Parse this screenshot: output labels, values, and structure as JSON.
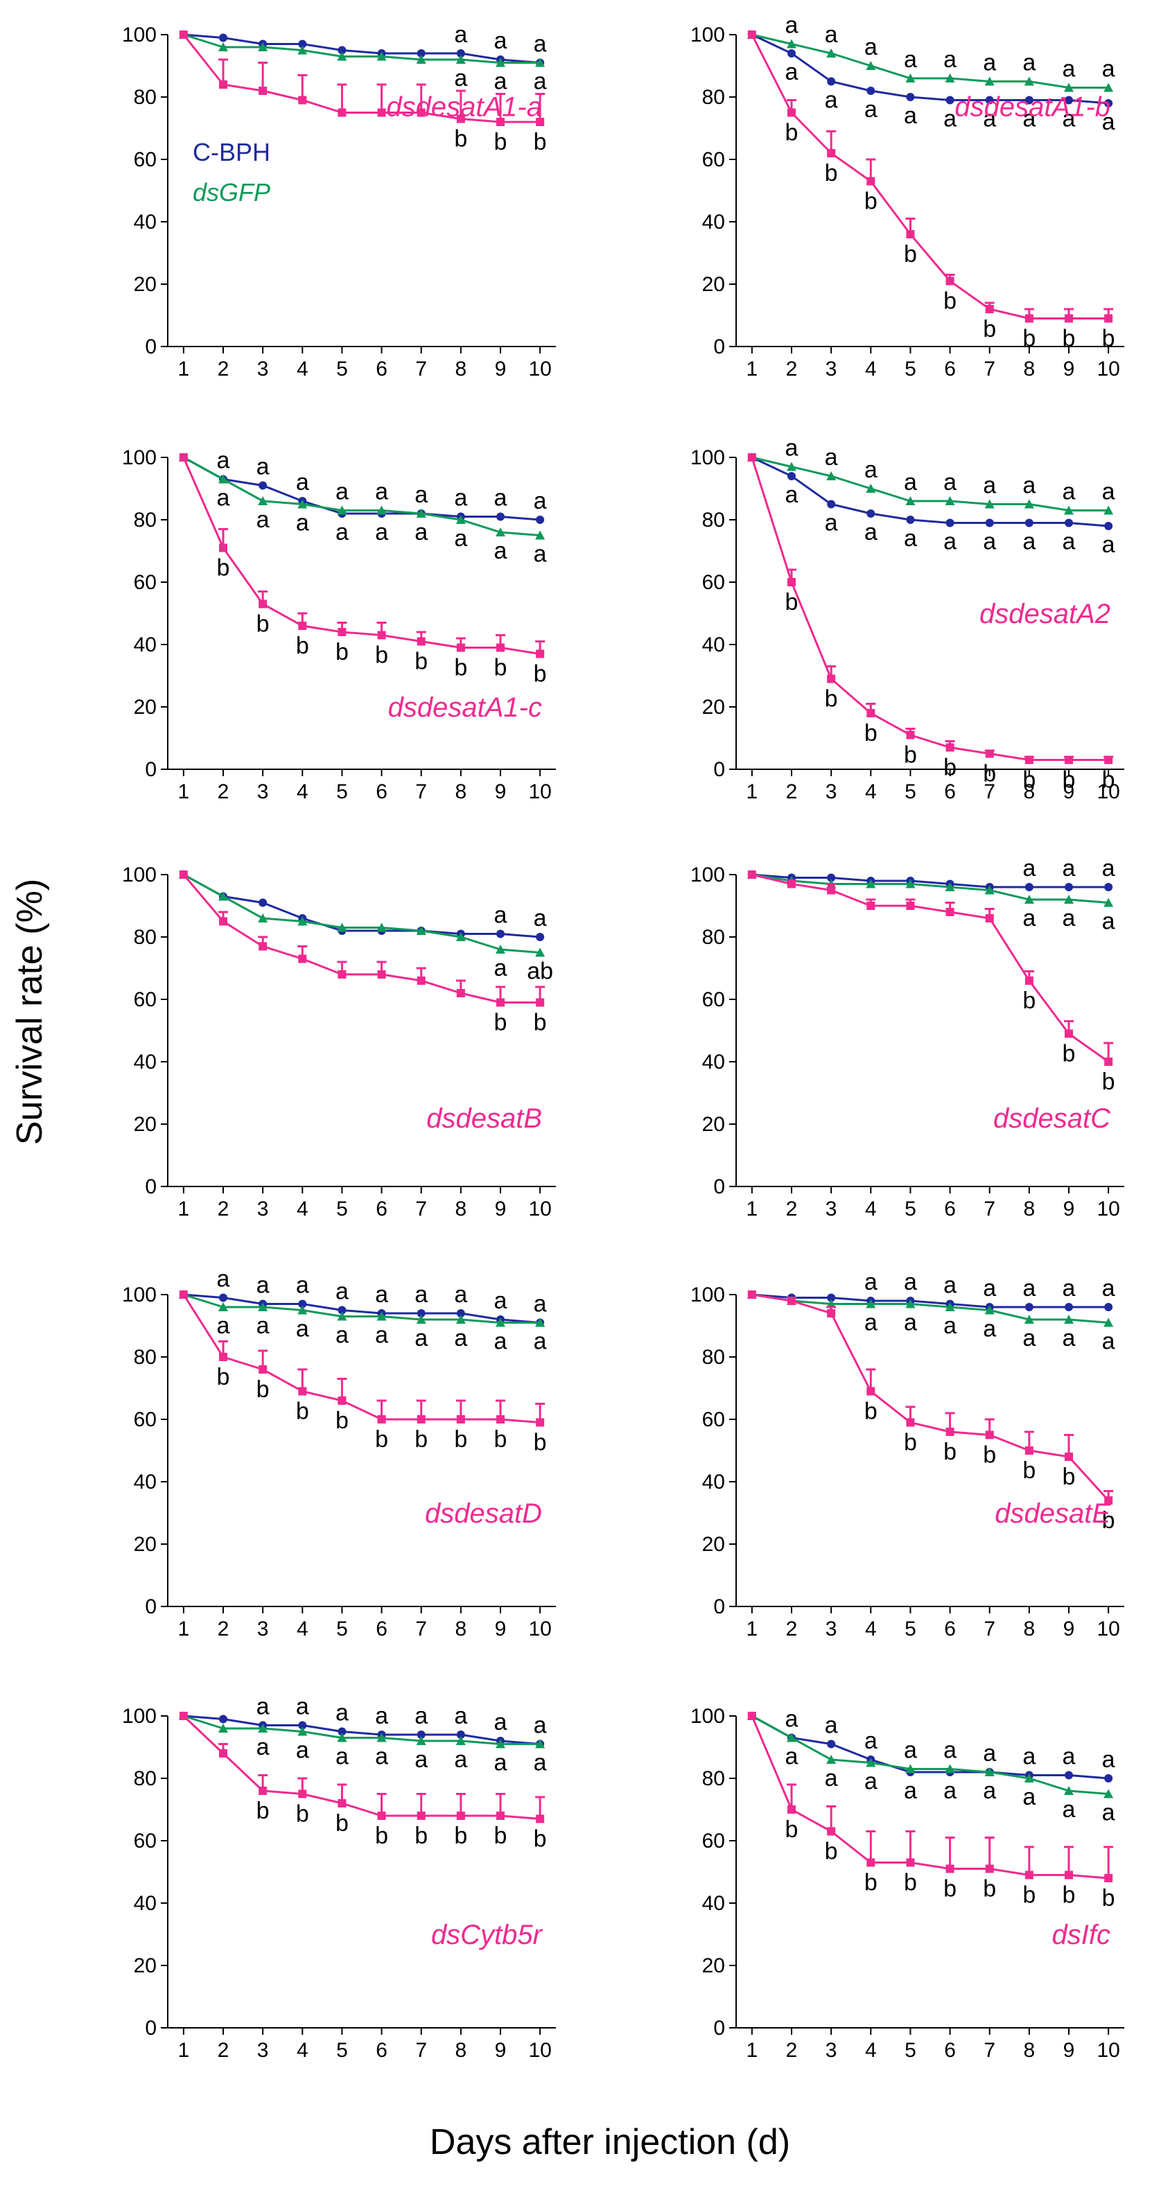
{
  "figure": {
    "ylabel": "Survival rate (%)",
    "xlabel": "Days after injection (d)",
    "legend": [
      {
        "label": "C-BPH",
        "color": "#1f2a9e",
        "italic": false
      },
      {
        "label": "dsGFP",
        "color": "#0f9a5a",
        "italic": true
      }
    ]
  },
  "colors": {
    "cbph": "#1f2a9e",
    "dsgfp": "#0f9a5a",
    "treatment": "#ef2a8f"
  },
  "chart_data": [
    {
      "type": "line",
      "title": "dsdesatA1-a",
      "x": [
        1,
        2,
        3,
        4,
        5,
        6,
        7,
        8,
        9,
        10
      ],
      "ylim": [
        0,
        100
      ],
      "yticks": [
        0,
        20,
        40,
        60,
        80,
        100
      ],
      "xticks": [
        1,
        2,
        3,
        4,
        5,
        6,
        7,
        8,
        9,
        10
      ],
      "series": [
        {
          "name": "C-BPH",
          "values": [
            100,
            99,
            97,
            97,
            95,
            94,
            94,
            94,
            92,
            91
          ]
        },
        {
          "name": "dsGFP",
          "values": [
            100,
            96,
            96,
            95,
            93,
            93,
            92,
            92,
            91,
            91
          ]
        },
        {
          "name": "dsdesatA1-a",
          "values": [
            100,
            84,
            82,
            79,
            75,
            75,
            75,
            73,
            72,
            72
          ],
          "errors": [
            0,
            8,
            9,
            8,
            9,
            9,
            9,
            9,
            9,
            9
          ]
        }
      ],
      "letters_top": [
        null,
        null,
        null,
        null,
        null,
        null,
        null,
        "a",
        "a",
        "a"
      ],
      "letters_mid": [
        null,
        null,
        null,
        null,
        null,
        null,
        null,
        "a",
        "a",
        "a"
      ],
      "letters_bottom": [
        null,
        null,
        null,
        null,
        null,
        null,
        null,
        "b",
        "b",
        "b"
      ]
    },
    {
      "type": "line",
      "title": "dsdesatA1-b",
      "x": [
        1,
        2,
        3,
        4,
        5,
        6,
        7,
        8,
        9,
        10
      ],
      "ylim": [
        0,
        100
      ],
      "yticks": [
        0,
        20,
        40,
        60,
        80,
        100
      ],
      "xticks": [
        1,
        2,
        3,
        4,
        5,
        6,
        7,
        8,
        9,
        10
      ],
      "series": [
        {
          "name": "C-BPH",
          "values": [
            100,
            94,
            85,
            82,
            80,
            79,
            79,
            79,
            79,
            78
          ]
        },
        {
          "name": "dsGFP",
          "values": [
            100,
            97,
            94,
            90,
            86,
            86,
            85,
            85,
            83,
            83
          ]
        },
        {
          "name": "dsdesatA1-b",
          "values": [
            100,
            75,
            62,
            53,
            36,
            21,
            12,
            9,
            9,
            9
          ],
          "errors": [
            0,
            4,
            7,
            7,
            5,
            2,
            2,
            3,
            3,
            3
          ]
        }
      ],
      "letters_top": [
        null,
        "a",
        "a",
        "a",
        "a",
        "a",
        "a",
        "a",
        "a",
        "a"
      ],
      "letters_mid": [
        null,
        "a",
        "a",
        "a",
        "a",
        "a",
        "a",
        "a",
        "a",
        "a"
      ],
      "letters_bottom": [
        null,
        "b",
        "b",
        "b",
        "b",
        "b",
        "b",
        "b",
        "b",
        "b"
      ]
    },
    {
      "type": "line",
      "title": "dsdesatA1-c",
      "x": [
        1,
        2,
        3,
        4,
        5,
        6,
        7,
        8,
        9,
        10
      ],
      "ylim": [
        0,
        100
      ],
      "yticks": [
        0,
        20,
        40,
        60,
        80,
        100
      ],
      "xticks": [
        1,
        2,
        3,
        4,
        5,
        6,
        7,
        8,
        9,
        10
      ],
      "series": [
        {
          "name": "C-BPH",
          "values": [
            100,
            93,
            91,
            86,
            82,
            82,
            82,
            81,
            81,
            80
          ]
        },
        {
          "name": "dsGFP",
          "values": [
            100,
            93,
            86,
            85,
            83,
            83,
            82,
            80,
            76,
            75
          ]
        },
        {
          "name": "dsdesatA1-c",
          "values": [
            100,
            71,
            53,
            46,
            44,
            43,
            41,
            39,
            39,
            37
          ],
          "errors": [
            0,
            6,
            4,
            4,
            3,
            4,
            3,
            3,
            4,
            4
          ]
        }
      ],
      "letters_top": [
        null,
        "a",
        "a",
        "a",
        "a",
        "a",
        "a",
        "a",
        "a",
        "a"
      ],
      "letters_mid": [
        null,
        "a",
        "a",
        "a",
        "a",
        "a",
        "a",
        "a",
        "a",
        "a"
      ],
      "letters_bottom": [
        null,
        "b",
        "b",
        "b",
        "b",
        "b",
        "b",
        "b",
        "b",
        "b"
      ]
    },
    {
      "type": "line",
      "title": "dsdesatA2",
      "x": [
        1,
        2,
        3,
        4,
        5,
        6,
        7,
        8,
        9,
        10
      ],
      "ylim": [
        0,
        100
      ],
      "yticks": [
        0,
        20,
        40,
        60,
        80,
        100
      ],
      "xticks": [
        1,
        2,
        3,
        4,
        5,
        6,
        7,
        8,
        9,
        10
      ],
      "series": [
        {
          "name": "C-BPH",
          "values": [
            100,
            94,
            85,
            82,
            80,
            79,
            79,
            79,
            79,
            78
          ]
        },
        {
          "name": "dsGFP",
          "values": [
            100,
            97,
            94,
            90,
            86,
            86,
            85,
            85,
            83,
            83
          ]
        },
        {
          "name": "dsdesatA2",
          "values": [
            100,
            60,
            29,
            18,
            11,
            7,
            5,
            3,
            3,
            3
          ],
          "errors": [
            0,
            4,
            4,
            3,
            2,
            2,
            1,
            1,
            1,
            1
          ]
        }
      ],
      "letters_top": [
        null,
        "a",
        "a",
        "a",
        "a",
        "a",
        "a",
        "a",
        "a",
        "a"
      ],
      "letters_mid": [
        null,
        "a",
        "a",
        "a",
        "a",
        "a",
        "a",
        "a",
        "a",
        "a"
      ],
      "letters_bottom": [
        null,
        "b",
        "b",
        "b",
        "b",
        "b",
        "b",
        "b",
        "b",
        "b"
      ]
    },
    {
      "type": "line",
      "title": "dsdesatB",
      "x": [
        1,
        2,
        3,
        4,
        5,
        6,
        7,
        8,
        9,
        10
      ],
      "ylim": [
        0,
        100
      ],
      "yticks": [
        0,
        20,
        40,
        60,
        80,
        100
      ],
      "xticks": [
        1,
        2,
        3,
        4,
        5,
        6,
        7,
        8,
        9,
        10
      ],
      "series": [
        {
          "name": "C-BPH",
          "values": [
            100,
            93,
            91,
            86,
            82,
            82,
            82,
            81,
            81,
            80
          ]
        },
        {
          "name": "dsGFP",
          "values": [
            100,
            93,
            86,
            85,
            83,
            83,
            82,
            80,
            76,
            75
          ]
        },
        {
          "name": "dsdesatB",
          "values": [
            100,
            85,
            77,
            73,
            68,
            68,
            66,
            62,
            59,
            59
          ],
          "errors": [
            0,
            3,
            3,
            4,
            4,
            4,
            4,
            4,
            5,
            5
          ]
        }
      ],
      "letters_top": [
        null,
        null,
        null,
        null,
        null,
        null,
        null,
        null,
        "a",
        "a"
      ],
      "letters_mid": [
        null,
        null,
        null,
        null,
        null,
        null,
        null,
        null,
        "a",
        "ab"
      ],
      "letters_bottom": [
        null,
        null,
        null,
        null,
        null,
        null,
        null,
        null,
        "b",
        "b"
      ]
    },
    {
      "type": "line",
      "title": "dsdesatC",
      "x": [
        1,
        2,
        3,
        4,
        5,
        6,
        7,
        8,
        9,
        10
      ],
      "ylim": [
        0,
        100
      ],
      "yticks": [
        0,
        20,
        40,
        60,
        80,
        100
      ],
      "xticks": [
        1,
        2,
        3,
        4,
        5,
        6,
        7,
        8,
        9,
        10
      ],
      "series": [
        {
          "name": "C-BPH",
          "values": [
            100,
            99,
            99,
            98,
            98,
            97,
            96,
            96,
            96,
            96
          ]
        },
        {
          "name": "dsGFP",
          "values": [
            100,
            98,
            97,
            97,
            97,
            96,
            95,
            92,
            92,
            91
          ]
        },
        {
          "name": "dsdesatC",
          "values": [
            100,
            97,
            95,
            90,
            90,
            88,
            86,
            66,
            49,
            40
          ],
          "errors": [
            0,
            1,
            2,
            2,
            2,
            3,
            3,
            3,
            4,
            6
          ]
        }
      ],
      "letters_top": [
        null,
        null,
        null,
        null,
        null,
        null,
        null,
        "a",
        "a",
        "a"
      ],
      "letters_mid": [
        null,
        null,
        null,
        null,
        null,
        null,
        null,
        "a",
        "a",
        "a"
      ],
      "letters_bottom": [
        null,
        null,
        null,
        null,
        null,
        null,
        null,
        "b",
        "b",
        "b"
      ]
    },
    {
      "type": "line",
      "title": "dsdesatD",
      "x": [
        1,
        2,
        3,
        4,
        5,
        6,
        7,
        8,
        9,
        10
      ],
      "ylim": [
        0,
        100
      ],
      "yticks": [
        0,
        20,
        40,
        60,
        80,
        100
      ],
      "xticks": [
        1,
        2,
        3,
        4,
        5,
        6,
        7,
        8,
        9,
        10
      ],
      "series": [
        {
          "name": "C-BPH",
          "values": [
            100,
            99,
            97,
            97,
            95,
            94,
            94,
            94,
            92,
            91
          ]
        },
        {
          "name": "dsGFP",
          "values": [
            100,
            96,
            96,
            95,
            93,
            93,
            92,
            92,
            91,
            91
          ]
        },
        {
          "name": "dsdesatD",
          "values": [
            100,
            80,
            76,
            69,
            66,
            60,
            60,
            60,
            60,
            59
          ],
          "errors": [
            0,
            5,
            6,
            7,
            7,
            6,
            6,
            6,
            6,
            6
          ]
        }
      ],
      "letters_top": [
        null,
        "a",
        "a",
        "a",
        "a",
        "a",
        "a",
        "a",
        "a",
        "a"
      ],
      "letters_mid": [
        null,
        "a",
        "a",
        "a",
        "a",
        "a",
        "a",
        "a",
        "a",
        "a"
      ],
      "letters_bottom": [
        null,
        "b",
        "b",
        "b",
        "b",
        "b",
        "b",
        "b",
        "b",
        "b"
      ]
    },
    {
      "type": "line",
      "title": "dsdesatE",
      "x": [
        1,
        2,
        3,
        4,
        5,
        6,
        7,
        8,
        9,
        10
      ],
      "ylim": [
        0,
        100
      ],
      "yticks": [
        0,
        20,
        40,
        60,
        80,
        100
      ],
      "xticks": [
        1,
        2,
        3,
        4,
        5,
        6,
        7,
        8,
        9,
        10
      ],
      "series": [
        {
          "name": "C-BPH",
          "values": [
            100,
            99,
            99,
            98,
            98,
            97,
            96,
            96,
            96,
            96
          ]
        },
        {
          "name": "dsGFP",
          "values": [
            100,
            98,
            97,
            97,
            97,
            96,
            95,
            92,
            92,
            91
          ]
        },
        {
          "name": "dsdesatE",
          "values": [
            100,
            98,
            94,
            69,
            59,
            56,
            55,
            50,
            48,
            34
          ],
          "errors": [
            0,
            1,
            2,
            7,
            5,
            6,
            5,
            6,
            7,
            3
          ]
        }
      ],
      "letters_top": [
        null,
        null,
        null,
        "a",
        "a",
        "a",
        "a",
        "a",
        "a",
        "a"
      ],
      "letters_mid": [
        null,
        null,
        null,
        "a",
        "a",
        "a",
        "a",
        "a",
        "a",
        "a"
      ],
      "letters_bottom": [
        null,
        null,
        null,
        "b",
        "b",
        "b",
        "b",
        "b",
        "b",
        "b"
      ]
    },
    {
      "type": "line",
      "title": "dsCytb5r",
      "x": [
        1,
        2,
        3,
        4,
        5,
        6,
        7,
        8,
        9,
        10
      ],
      "ylim": [
        0,
        100
      ],
      "yticks": [
        0,
        20,
        40,
        60,
        80,
        100
      ],
      "xticks": [
        1,
        2,
        3,
        4,
        5,
        6,
        7,
        8,
        9,
        10
      ],
      "series": [
        {
          "name": "C-BPH",
          "values": [
            100,
            99,
            97,
            97,
            95,
            94,
            94,
            94,
            92,
            91
          ]
        },
        {
          "name": "dsGFP",
          "values": [
            100,
            96,
            96,
            95,
            93,
            93,
            92,
            92,
            91,
            91
          ]
        },
        {
          "name": "dsCytb5r",
          "values": [
            100,
            88,
            76,
            75,
            72,
            68,
            68,
            68,
            68,
            67
          ],
          "errors": [
            0,
            3,
            5,
            5,
            6,
            7,
            7,
            7,
            7,
            7
          ]
        }
      ],
      "letters_top": [
        null,
        null,
        "a",
        "a",
        "a",
        "a",
        "a",
        "a",
        "a",
        "a"
      ],
      "letters_mid": [
        null,
        null,
        "a",
        "a",
        "a",
        "a",
        "a",
        "a",
        "a",
        "a"
      ],
      "letters_bottom": [
        null,
        null,
        "b",
        "b",
        "b",
        "b",
        "b",
        "b",
        "b",
        "b"
      ]
    },
    {
      "type": "line",
      "title": "dsIfc",
      "x": [
        1,
        2,
        3,
        4,
        5,
        6,
        7,
        8,
        9,
        10
      ],
      "ylim": [
        0,
        100
      ],
      "yticks": [
        0,
        20,
        40,
        60,
        80,
        100
      ],
      "xticks": [
        1,
        2,
        3,
        4,
        5,
        6,
        7,
        8,
        9,
        10
      ],
      "series": [
        {
          "name": "C-BPH",
          "values": [
            100,
            93,
            91,
            86,
            82,
            82,
            82,
            81,
            81,
            80
          ]
        },
        {
          "name": "dsGFP",
          "values": [
            100,
            93,
            86,
            85,
            83,
            83,
            82,
            80,
            76,
            75
          ]
        },
        {
          "name": "dsIfc",
          "values": [
            100,
            70,
            63,
            53,
            53,
            51,
            51,
            49,
            49,
            48
          ],
          "errors": [
            0,
            8,
            8,
            10,
            10,
            10,
            10,
            9,
            9,
            10
          ]
        }
      ],
      "letters_top": [
        null,
        "a",
        "a",
        "a",
        "a",
        "a",
        "a",
        "a",
        "a",
        "a"
      ],
      "letters_mid": [
        null,
        "a",
        "a",
        "a",
        "a",
        "a",
        "a",
        "a",
        "a",
        "a"
      ],
      "letters_bottom": [
        null,
        "b",
        "b",
        "b",
        "b",
        "b",
        "b",
        "b",
        "b",
        "b"
      ]
    }
  ]
}
